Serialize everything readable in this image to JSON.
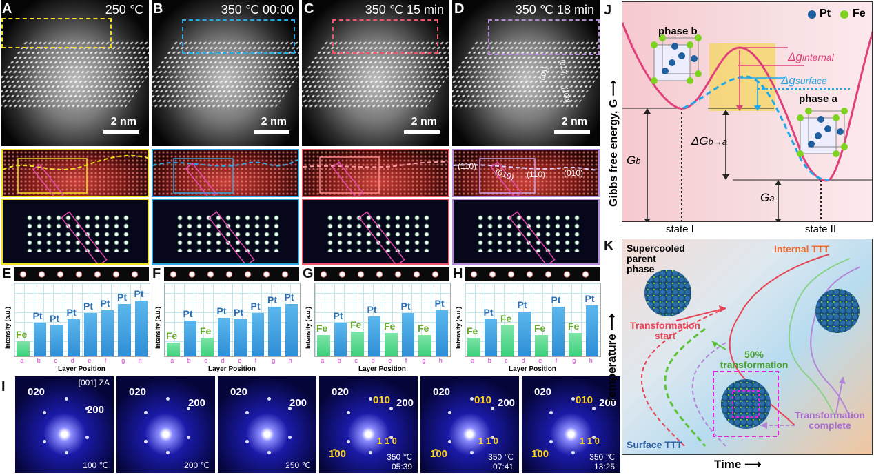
{
  "panels": {
    "A": {
      "letter": "A",
      "title": "250 ℃",
      "scale": "2 nm",
      "box_color": "#f0e020"
    },
    "B": {
      "letter": "B",
      "title": "350 ℃ 00:00",
      "scale": "2 nm",
      "box_color": "#2ea6e0"
    },
    "C": {
      "letter": "C",
      "title": "350 ℃ 15 min",
      "scale": "2 nm",
      "box_color": "#e85a6a"
    },
    "D": {
      "letter": "D",
      "title": "350 ℃ 18 min",
      "scale": "2 nm",
      "box_color": "#b48ad8"
    }
  },
  "d_labels": {
    "l110a": "(110)",
    "l010a": "(010)",
    "l110b": "(110)",
    "l010b": "(010)",
    "ax001": "[001]",
    "ax010": "[010]",
    "ax100": "[100]"
  },
  "profiles": {
    "letters": [
      "E",
      "F",
      "G",
      "H"
    ],
    "ylabel": "Intensity (a.u.)",
    "xlabel": "Layer Position",
    "ticks": [
      "a",
      "b",
      "c",
      "d",
      "e",
      "f",
      "g",
      "h"
    ],
    "E": {
      "labels": [
        "Fe",
        "Pt",
        "Pt",
        "Pt",
        "Pt",
        "Pt",
        "Pt",
        "Pt"
      ],
      "values": [
        0.25,
        0.55,
        0.5,
        0.6,
        0.7,
        0.75,
        0.85,
        0.9
      ]
    },
    "F": {
      "labels": [
        "Fe",
        "Pt",
        "Fe",
        "Pt",
        "Pt",
        "Pt",
        "Pt",
        "Pt"
      ],
      "values": [
        0.22,
        0.58,
        0.3,
        0.62,
        0.6,
        0.7,
        0.8,
        0.85
      ]
    },
    "G": {
      "labels": [
        "Fe",
        "Pt",
        "Fe",
        "Pt",
        "Fe",
        "Pt",
        "Fe",
        "Pt"
      ],
      "values": [
        0.35,
        0.55,
        0.4,
        0.65,
        0.38,
        0.7,
        0.35,
        0.75
      ]
    },
    "H": {
      "labels": [
        "Fe",
        "Pt",
        "Fe",
        "Pt",
        "Fe",
        "Pt",
        "Fe",
        "Pt"
      ],
      "values": [
        0.3,
        0.6,
        0.5,
        0.72,
        0.35,
        0.8,
        0.38,
        0.82
      ]
    }
  },
  "fft": {
    "letter": "I",
    "za": "[001] ZA",
    "l020": "020",
    "l200": "200",
    "l010": "010",
    "l1m10": "1 1̄ 0",
    "l100": "1̄00",
    "frames": [
      {
        "temp": "100 ℃",
        "time": ""
      },
      {
        "temp": "200 ℃",
        "time": ""
      },
      {
        "temp": "250 ℃",
        "time": ""
      },
      {
        "temp": "350 ℃",
        "time": "05:39"
      },
      {
        "temp": "350 ℃",
        "time": "07:41"
      },
      {
        "temp": "350 ℃",
        "time": "13:25"
      }
    ]
  },
  "energy": {
    "letter": "J",
    "legend_pt": "Pt",
    "legend_fe": "Fe",
    "phase_b": "phase b",
    "phase_a": "phase a",
    "dg_internal": "Δg",
    "dg_internal_sub": "internal",
    "dg_surface": "Δg",
    "dg_surface_sub": "surface",
    "dG": "ΔG",
    "dG_sub": "b→a",
    "Gb": "G",
    "Gb_sub": "b",
    "Ga": "G",
    "Ga_sub": "a",
    "ylabel": "Gibbs free energy, G ⟶",
    "state1": "state I",
    "state2": "state II",
    "colors": {
      "internal": "#e0407a",
      "surface": "#1fa7e8"
    }
  },
  "ttt": {
    "letter": "K",
    "parent": "Supercooled parent phase",
    "internal": "Internal TTT",
    "start": "Transformation start",
    "fifty": "50% transformation",
    "complete": "Transformation complete",
    "surface": "Surface TTT",
    "ylabel": "Temperature ⟶",
    "xlabel": "Time ⟶"
  }
}
